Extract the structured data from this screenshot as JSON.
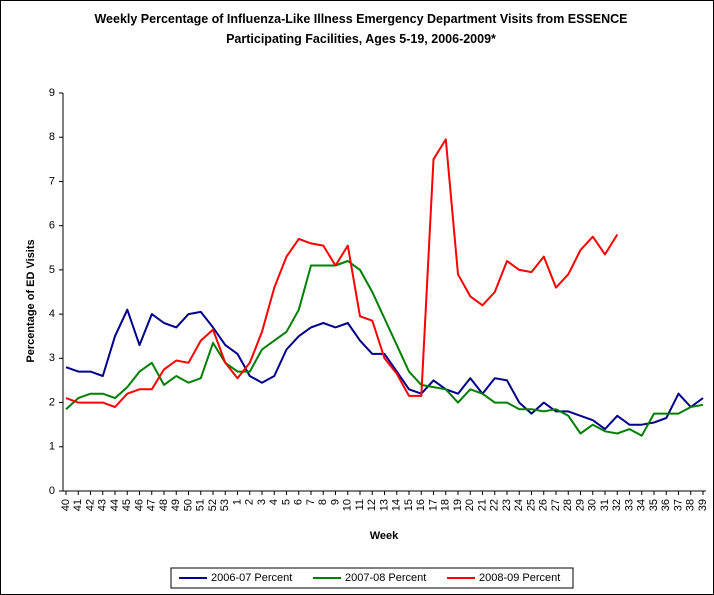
{
  "chart_data": {
    "type": "line",
    "title": "Weekly Percentage of Influenza-Like Illness Emergency Department Visits from ESSENCE Participating Facilities, Ages 5-19, 2006-2009*",
    "x_label": "Week",
    "y_label": "Percentage of ED Visits",
    "categories": [
      "40",
      "41",
      "42",
      "43",
      "44",
      "45",
      "46",
      "47",
      "48",
      "49",
      "50",
      "51",
      "52",
      "53",
      "1",
      "2",
      "3",
      "4",
      "5",
      "6",
      "7",
      "8",
      "9",
      "10",
      "11",
      "12",
      "13",
      "14",
      "15",
      "16",
      "17",
      "18",
      "19",
      "20",
      "21",
      "22",
      "23",
      "24",
      "25",
      "26",
      "27",
      "28",
      "29",
      "30",
      "31",
      "32",
      "33",
      "34",
      "35",
      "36",
      "37",
      "38",
      "39"
    ],
    "ylim": [
      0,
      9
    ],
    "yticks": [
      0,
      1,
      2,
      3,
      4,
      5,
      6,
      7,
      8,
      9
    ],
    "grid": false,
    "legend": "bottom",
    "series": [
      {
        "name": "2006-07 Percent",
        "color": "#00008b",
        "values": [
          2.8,
          2.7,
          2.7,
          2.6,
          3.5,
          4.1,
          3.3,
          4.0,
          3.8,
          3.7,
          4.0,
          4.05,
          3.7,
          3.3,
          3.1,
          2.6,
          2.45,
          2.6,
          3.2,
          3.5,
          3.7,
          3.8,
          3.7,
          3.8,
          3.4,
          3.1,
          3.1,
          2.7,
          2.3,
          2.2,
          2.5,
          2.3,
          2.2,
          2.55,
          2.2,
          2.55,
          2.5,
          2.0,
          1.75,
          2.0,
          1.8,
          1.8,
          1.7,
          1.6,
          1.4,
          1.7,
          1.5,
          1.5,
          1.55,
          1.65,
          2.2,
          1.9,
          2.1
        ]
      },
      {
        "name": "2007-08 Percent",
        "color": "#008000",
        "values": [
          1.85,
          2.1,
          2.2,
          2.2,
          2.1,
          2.35,
          2.7,
          2.9,
          2.4,
          2.6,
          2.45,
          2.55,
          3.35,
          2.9,
          2.7,
          2.7,
          3.2,
          3.4,
          3.6,
          4.1,
          5.1,
          5.1,
          5.1,
          5.2,
          5.0,
          4.5,
          3.9,
          3.3,
          2.7,
          2.4,
          2.35,
          2.3,
          2.0,
          2.3,
          2.2,
          2.0,
          2.0,
          1.85,
          1.85,
          1.8,
          1.85,
          1.7,
          1.3,
          1.5,
          1.35,
          1.3,
          1.4,
          1.25,
          1.75,
          1.75,
          1.75,
          1.9,
          1.95
        ]
      },
      {
        "name": "2008-09 Percent",
        "color": "#ff0000",
        "values": [
          2.1,
          2.0,
          2.0,
          2.0,
          1.9,
          2.2,
          2.3,
          2.3,
          2.75,
          2.95,
          2.9,
          3.4,
          3.65,
          2.9,
          2.55,
          2.9,
          3.6,
          4.6,
          5.3,
          5.7,
          5.6,
          5.55,
          5.1,
          5.55,
          3.95,
          3.85,
          3.0,
          2.65,
          2.15,
          2.15,
          7.5,
          7.95,
          4.9,
          4.4,
          4.2,
          4.5,
          5.2,
          5.0,
          4.95,
          5.3,
          4.6,
          4.9,
          5.45,
          5.75,
          5.35,
          5.8,
          null,
          null,
          null,
          null,
          null,
          null,
          null
        ]
      }
    ]
  }
}
